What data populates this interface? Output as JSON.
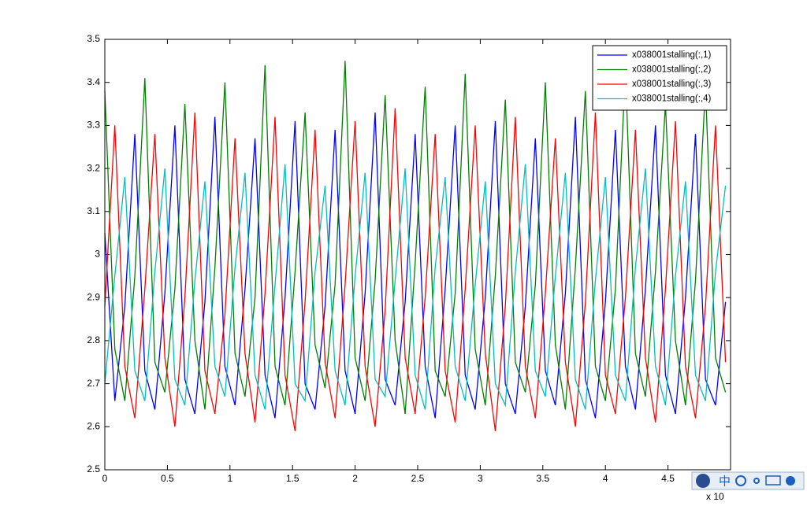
{
  "chart_data": {
    "type": "line",
    "x": [
      0,
      0.08,
      0.16,
      0.24,
      0.32,
      0.4,
      0.48,
      0.56,
      0.64,
      0.72,
      0.8,
      0.88,
      0.96,
      1.04,
      1.12,
      1.2,
      1.28,
      1.36,
      1.44,
      1.52,
      1.6,
      1.68,
      1.76,
      1.84,
      1.92,
      2,
      2.08,
      2.16,
      2.24,
      2.32,
      2.4,
      2.48,
      2.56,
      2.64,
      2.72,
      2.8,
      2.88,
      2.96,
      3.04,
      3.12,
      3.2,
      3.28,
      3.36,
      3.44,
      3.52,
      3.6,
      3.68,
      3.76,
      3.84,
      3.92,
      4,
      4.08,
      4.16,
      4.24,
      4.32,
      4.4,
      4.48,
      4.56,
      4.64,
      4.72,
      4.8,
      4.88,
      4.96
    ],
    "series": [
      {
        "name": "x038001stalling(:,1)",
        "color": "#0000ff",
        "values": [
          3.05,
          2.66,
          2.88,
          3.28,
          2.73,
          2.64,
          2.91,
          3.3,
          2.71,
          2.63,
          2.89,
          3.32,
          2.74,
          2.65,
          2.92,
          3.27,
          2.72,
          2.62,
          2.9,
          3.31,
          2.7,
          2.64,
          2.88,
          3.29,
          2.73,
          2.63,
          2.91,
          3.33,
          2.71,
          2.65,
          2.89,
          3.28,
          2.74,
          2.62,
          2.92,
          3.3,
          2.72,
          2.64,
          2.9,
          3.31,
          2.7,
          2.63,
          2.88,
          3.27,
          2.73,
          2.65,
          2.91,
          3.32,
          2.71,
          2.62,
          2.89,
          3.29,
          2.74,
          2.64,
          2.92,
          3.3,
          2.72,
          2.63,
          2.9,
          3.28,
          2.71,
          2.65,
          2.89
        ]
      },
      {
        "name": "x038001stalling(:,2)",
        "color": "#008000",
        "values": [
          3.38,
          2.78,
          2.66,
          2.95,
          3.41,
          2.75,
          2.68,
          2.92,
          3.35,
          2.8,
          2.64,
          2.97,
          3.4,
          2.77,
          2.67,
          2.9,
          3.44,
          2.74,
          2.65,
          2.96,
          3.33,
          2.79,
          2.69,
          2.93,
          3.45,
          2.76,
          2.66,
          2.94,
          3.37,
          2.8,
          2.63,
          2.98,
          3.39,
          2.73,
          2.67,
          2.91,
          3.42,
          2.78,
          2.65,
          2.95,
          3.36,
          2.75,
          2.68,
          2.93,
          3.4,
          2.79,
          2.64,
          2.97,
          3.38,
          2.74,
          2.66,
          2.92,
          3.43,
          2.77,
          2.67,
          2.96,
          3.35,
          2.8,
          2.65,
          2.94,
          3.39,
          2.76,
          2.68
        ]
      },
      {
        "name": "x038001stalling(:,3)",
        "color": "#ff0000",
        "values": [
          2.88,
          3.3,
          2.74,
          2.62,
          2.92,
          3.28,
          2.76,
          2.6,
          2.9,
          3.33,
          2.73,
          2.63,
          2.86,
          3.27,
          2.77,
          2.61,
          2.91,
          3.32,
          2.72,
          2.59,
          2.89,
          3.29,
          2.75,
          2.62,
          2.93,
          3.31,
          2.74,
          2.6,
          2.87,
          3.34,
          2.76,
          2.63,
          2.9,
          3.28,
          2.73,
          2.61,
          2.92,
          3.3,
          2.77,
          2.59,
          2.88,
          3.32,
          2.74,
          2.62,
          2.91,
          3.27,
          2.75,
          2.6,
          2.89,
          3.33,
          2.72,
          2.63,
          2.9,
          3.29,
          2.76,
          2.61,
          2.92,
          3.31,
          2.74,
          2.62,
          2.88,
          3.3,
          2.75
        ]
      },
      {
        "name": "x038001stalling(:,4)",
        "color": "#00bfbf",
        "values": [
          2.7,
          2.95,
          3.18,
          2.73,
          2.66,
          2.96,
          3.2,
          2.71,
          2.65,
          2.94,
          3.17,
          2.74,
          2.67,
          2.97,
          3.19,
          2.72,
          2.64,
          2.93,
          3.21,
          2.7,
          2.66,
          2.96,
          3.16,
          2.73,
          2.65,
          2.95,
          3.19,
          2.71,
          2.67,
          2.94,
          3.2,
          2.72,
          2.64,
          2.97,
          3.18,
          2.74,
          2.66,
          2.93,
          3.17,
          2.7,
          2.65,
          2.96,
          3.21,
          2.73,
          2.67,
          2.95,
          3.19,
          2.71,
          2.64,
          2.94,
          3.18,
          2.72,
          2.66,
          2.97,
          3.2,
          2.74,
          2.65,
          2.95,
          3.17,
          2.72,
          2.66,
          2.96,
          3.16
        ]
      }
    ],
    "xlim": [
      0,
      5
    ],
    "xticks": [
      0,
      0.5,
      1,
      1.5,
      2,
      2.5,
      3,
      3.5,
      4,
      4.5
    ],
    "ylim": [
      2.5,
      3.5
    ],
    "yticks": [
      2.5,
      2.6,
      2.7,
      2.8,
      2.9,
      3,
      3.1,
      3.2,
      3.3,
      3.4,
      3.5
    ],
    "x_multiplier_label": "x 10",
    "grid": false,
    "legend_position": "northeast"
  },
  "ime_toolbar": {
    "label": "中"
  }
}
